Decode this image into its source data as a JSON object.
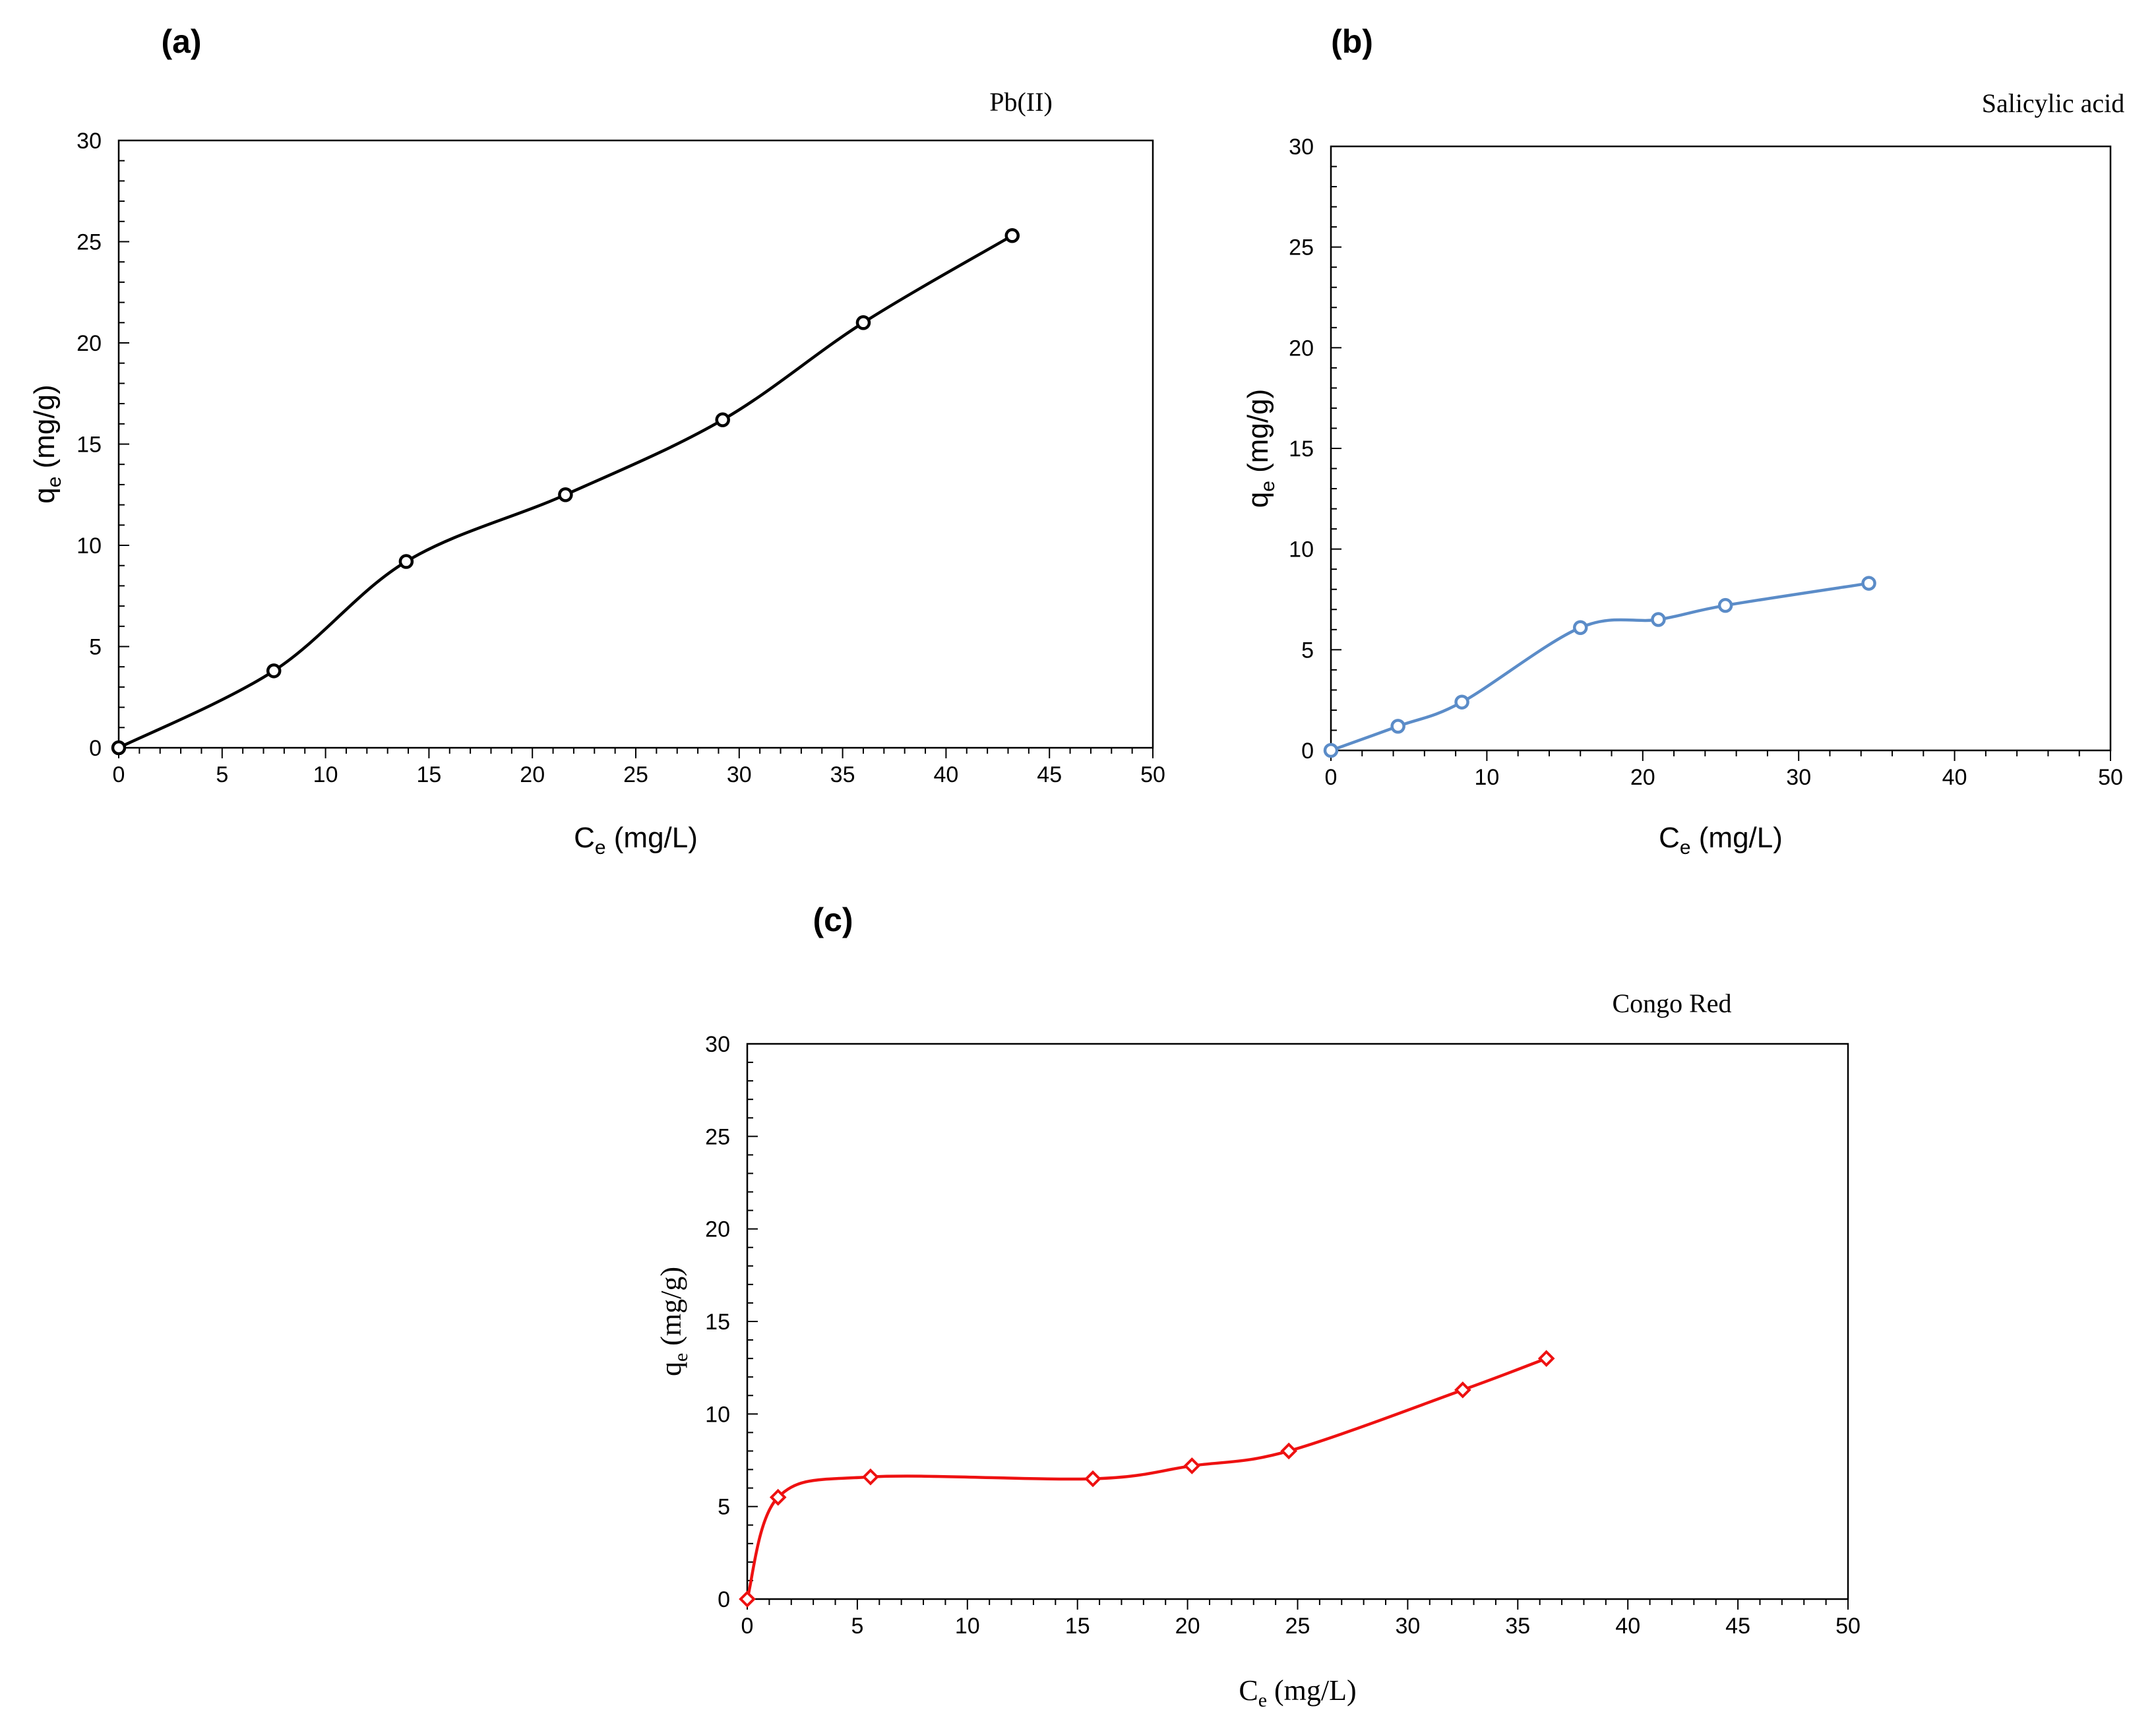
{
  "chart_data": [
    {
      "panel": "(a)",
      "type": "line",
      "title": "Pb(II)",
      "xlabel_main": "C",
      "xlabel_sub": "e",
      "xlabel_unit": "(mg/L)",
      "ylabel_main": "q",
      "ylabel_sub": "e",
      "ylabel_unit": "(mg/g)",
      "xlim": [
        0,
        50
      ],
      "ylim": [
        0,
        30
      ],
      "xticks": [
        0,
        5,
        10,
        15,
        20,
        25,
        30,
        35,
        40,
        45,
        50
      ],
      "yticks": [
        0,
        5,
        10,
        15,
        20,
        25,
        30
      ],
      "series": [
        {
          "name": "Pb(II)",
          "color": "#000000",
          "marker": "circle",
          "x": [
            0,
            7.5,
            13.9,
            21.6,
            29.2,
            36.0,
            43.2
          ],
          "y": [
            0,
            3.8,
            9.2,
            12.5,
            16.2,
            21.0,
            25.3
          ]
        }
      ]
    },
    {
      "panel": "(b)",
      "type": "line",
      "title": "Salicylic acid",
      "xlabel_main": "C",
      "xlabel_sub": "e",
      "xlabel_unit": "(mg/L)",
      "ylabel_main": "q",
      "ylabel_sub": "e",
      "ylabel_unit": "(mg/g)",
      "xlim": [
        0,
        50
      ],
      "ylim": [
        0,
        30
      ],
      "xticks": [
        0,
        10,
        20,
        30,
        40,
        50
      ],
      "yticks": [
        0,
        5,
        10,
        15,
        20,
        25,
        30
      ],
      "series": [
        {
          "name": "Salicylic acid",
          "color": "#5B8CC8",
          "marker": "circle",
          "x": [
            0,
            4.3,
            8.4,
            16.0,
            21.0,
            25.3,
            34.5
          ],
          "y": [
            0,
            1.2,
            2.4,
            6.1,
            6.5,
            7.2,
            8.3
          ]
        }
      ]
    },
    {
      "panel": "(c)",
      "type": "line",
      "title": "Congo Red",
      "xlabel_main": "C",
      "xlabel_sub": "e",
      "xlabel_unit": "(mg/L)",
      "ylabel_main": "q",
      "ylabel_sub": "e",
      "ylabel_unit": "(mg/g)",
      "xlim": [
        0,
        50
      ],
      "ylim": [
        0,
        30
      ],
      "xticks": [
        0,
        5,
        10,
        15,
        20,
        25,
        30,
        35,
        40,
        45,
        50
      ],
      "yticks": [
        0,
        5,
        10,
        15,
        20,
        25,
        30
      ],
      "series": [
        {
          "name": "Congo Red",
          "color": "#EE1111",
          "marker": "diamond",
          "x": [
            0,
            1.4,
            5.6,
            15.7,
            20.2,
            24.6,
            32.5,
            36.3
          ],
          "y": [
            0,
            5.5,
            6.6,
            6.5,
            7.2,
            8.0,
            11.3,
            13.0
          ]
        }
      ]
    }
  ]
}
